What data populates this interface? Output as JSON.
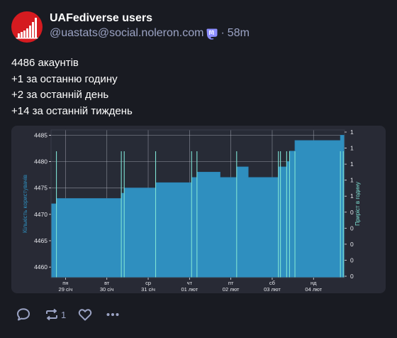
{
  "status": {
    "display_name": "UAFediverse users",
    "handle": "@uastats@social.noleron.com",
    "time_ago": "58m",
    "separator": "·",
    "bot_badge_icon": "mastodon-icon",
    "text_lines": [
      "4486 акаунтів",
      "+1 за останню годину",
      "+2 за останній день",
      "+14 за останній тиждень"
    ]
  },
  "actions": {
    "reply_icon": "reply-icon",
    "boost_icon": "boost-icon",
    "boost_count": "1",
    "favourite_icon": "heart-icon",
    "more_icon": "more-icon"
  },
  "colors": {
    "background": "#191b22",
    "muted": "#9ba3c4",
    "avatar": "#d51b20",
    "chart_bg": "#272b36",
    "chart_fill": "#2f8fbf",
    "chart_fill_edge": "#2b85b8",
    "growth_spikes": "#7fe3d4"
  },
  "chart_data": {
    "type": "area",
    "ylabel": "Кількість користувачів",
    "y2label": "Приріст в годину",
    "ylim": [
      4458,
      4486
    ],
    "y_ticks": [
      "4485",
      "4480",
      "4475",
      "4470",
      "4465",
      "4460"
    ],
    "y2_ticks": [
      "1",
      "1",
      "1",
      "1",
      "1",
      "0",
      "0",
      "0",
      "0",
      "0"
    ],
    "grid": true,
    "x_ticks": [
      {
        "day": "пн",
        "date": "29 січ"
      },
      {
        "day": "вт",
        "date": "30 січ"
      },
      {
        "day": "ср",
        "date": "31 січ"
      },
      {
        "day": "чт",
        "date": "01 лют"
      },
      {
        "day": "пт",
        "date": "02 лют"
      },
      {
        "day": "сб",
        "date": "03 лют"
      },
      {
        "day": "нд",
        "date": "04 лют"
      }
    ],
    "x_range_days": [
      -0.35,
      6.75
    ],
    "users_steps": [
      {
        "t": -0.35,
        "v": 4472
      },
      {
        "t": -0.22,
        "v": 4473
      },
      {
        "t": 1.35,
        "v": 4474
      },
      {
        "t": 1.42,
        "v": 4475
      },
      {
        "t": 2.18,
        "v": 4476
      },
      {
        "t": 3.05,
        "v": 4477
      },
      {
        "t": 3.18,
        "v": 4478
      },
      {
        "t": 3.74,
        "v": 4477
      },
      {
        "t": 4.14,
        "v": 4479
      },
      {
        "t": 4.42,
        "v": 4477
      },
      {
        "t": 5.15,
        "v": 4479
      },
      {
        "t": 5.35,
        "v": 4480
      },
      {
        "t": 5.42,
        "v": 4482
      },
      {
        "t": 5.55,
        "v": 4484
      },
      {
        "t": 6.65,
        "v": 4485
      },
      {
        "t": 6.75,
        "v": 4486
      }
    ],
    "growth_spikes_days": [
      -0.22,
      1.35,
      1.42,
      2.18,
      3.05,
      3.18,
      4.14,
      5.15,
      5.2,
      5.35,
      5.42,
      5.55,
      6.65,
      6.72
    ]
  }
}
